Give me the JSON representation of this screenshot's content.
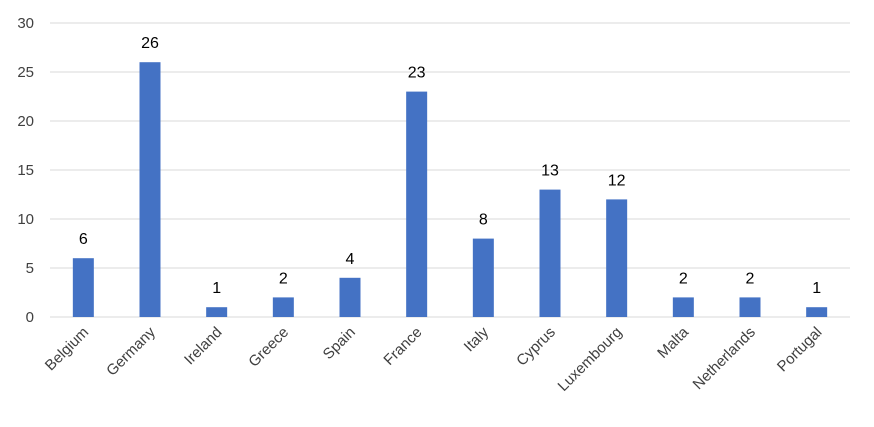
{
  "chart_data": {
    "type": "bar",
    "title": "",
    "xlabel": "",
    "ylabel": "",
    "categories": [
      "Belgium",
      "Germany",
      "Ireland",
      "Greece",
      "Spain",
      "France",
      "Italy",
      "Cyprus",
      "Luxembourg",
      "Malta",
      "Netherlands",
      "Portugal"
    ],
    "values": [
      6,
      26,
      1,
      2,
      4,
      23,
      8,
      13,
      12,
      2,
      2,
      1
    ],
    "ylim": [
      0,
      30
    ],
    "yticks": [
      0,
      5,
      10,
      15,
      20,
      25,
      30
    ],
    "grid": true,
    "legend": "none",
    "data_labels": true,
    "bar_color": "#4472c4",
    "category_label_rotation": "-45"
  }
}
